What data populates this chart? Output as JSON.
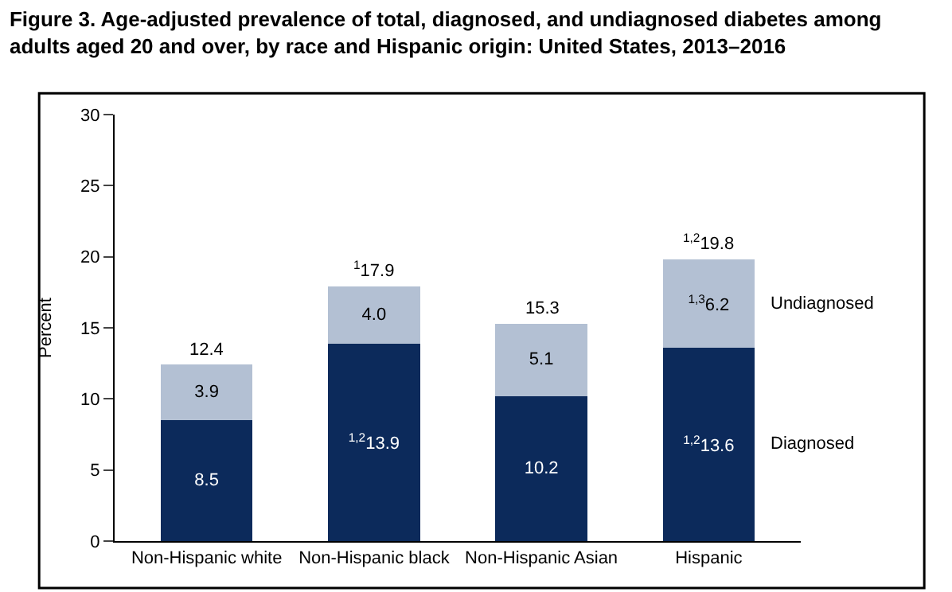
{
  "chart_data": {
    "type": "bar",
    "stacked": true,
    "title": "Figure 3. Age-adjusted prevalence of total, diagnosed, and undiagnosed diabetes among adults aged 20 and over, by race and Hispanic origin: United States, 2013–2016",
    "ylabel": "Percent",
    "categories": [
      "Non-Hispanic white",
      "Non-Hispanic black",
      "Non-Hispanic Asian",
      "Hispanic"
    ],
    "series": [
      {
        "name": "Diagnosed",
        "color": "#0c2a5b",
        "values": [
          8.5,
          13.9,
          10.2,
          13.6
        ],
        "value_labels": [
          "8.5",
          "$^{1,2}$13.9",
          "10.2",
          "$^{1,2}$13.6"
        ]
      },
      {
        "name": "Undiagnosed",
        "color": "#b3c0d3",
        "values": [
          3.9,
          4.0,
          5.1,
          6.2
        ],
        "value_labels": [
          "3.9",
          "4.0",
          "5.1",
          "$^{1,3}$6.2"
        ]
      }
    ],
    "totals": [
      "12.4",
      "$^{1}$17.9",
      "15.3",
      "$^{1,2}$19.8"
    ],
    "ylim": [
      0,
      30
    ],
    "yticks": [
      0,
      5,
      10,
      15,
      20,
      25,
      30
    ],
    "legend": false
  }
}
